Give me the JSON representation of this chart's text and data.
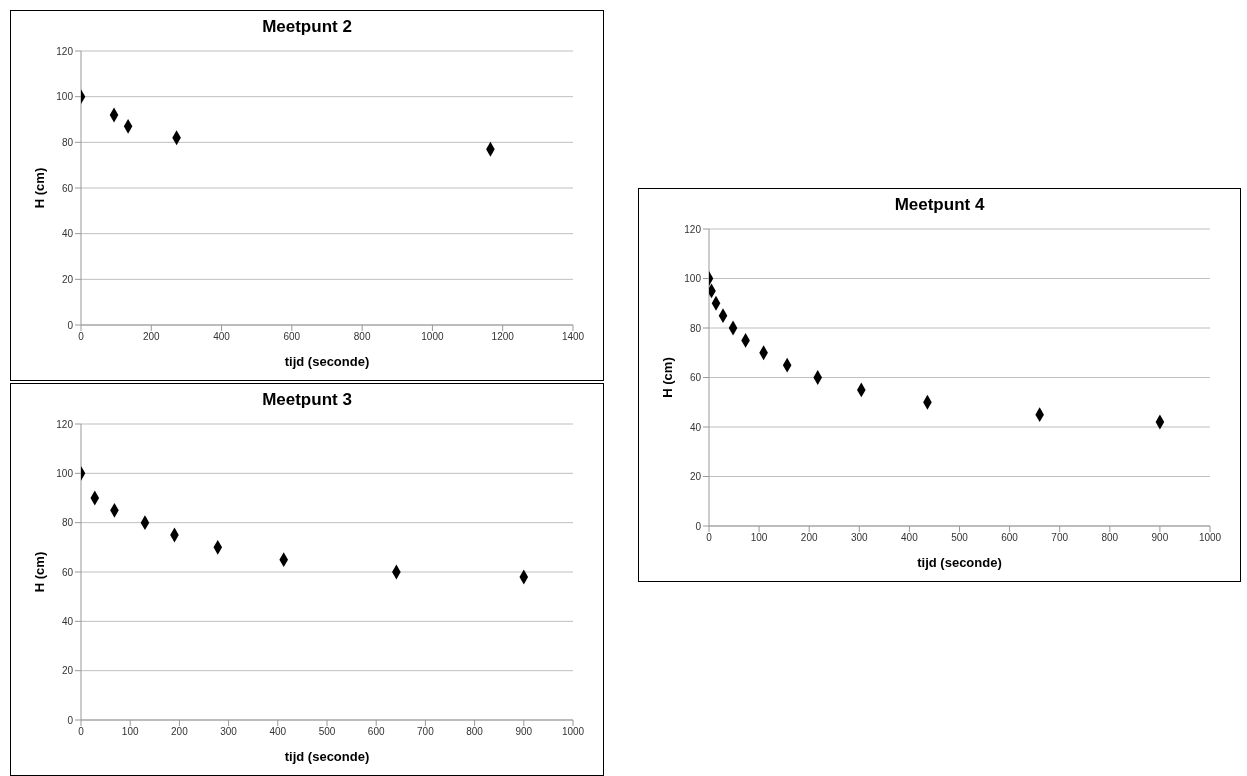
{
  "chart_data": [
    {
      "type": "scatter",
      "title": "Meetpunt 2",
      "xlabel": "tijd (seconde)",
      "ylabel": "H (cm)",
      "x": [
        0,
        94,
        134,
        272,
        1165
      ],
      "values": [
        100,
        92,
        87,
        82,
        77
      ],
      "color": "#000000",
      "xlim": [
        0,
        1400
      ],
      "xticks": [
        0,
        200,
        400,
        600,
        800,
        1000,
        1200,
        1400
      ],
      "ylim": [
        0,
        120
      ],
      "yticks": [
        0,
        20,
        40,
        60,
        80,
        100,
        120
      ],
      "grid": "y",
      "marker": "diamond"
    },
    {
      "type": "scatter",
      "title": "Meetpunt 3",
      "xlabel": "tijd (seconde)",
      "ylabel": "H (cm)",
      "x": [
        0,
        28,
        68,
        130,
        190,
        278,
        412,
        641,
        900
      ],
      "values": [
        100,
        90,
        85,
        80,
        75,
        70,
        65,
        60,
        58
      ],
      "color": "#000000",
      "xlim": [
        0,
        1000
      ],
      "xticks": [
        0,
        100,
        200,
        300,
        400,
        500,
        600,
        700,
        800,
        900,
        1000
      ],
      "ylim": [
        0,
        120
      ],
      "yticks": [
        0,
        20,
        40,
        60,
        80,
        100,
        120
      ],
      "grid": "y",
      "marker": "diamond"
    },
    {
      "type": "scatter",
      "title": "Meetpunt 4",
      "xlabel": "tijd (seconde)",
      "ylabel": "H (cm)",
      "x": [
        0,
        5,
        14,
        28,
        48,
        73,
        109,
        156,
        217,
        304,
        436,
        660,
        900
      ],
      "values": [
        100,
        95,
        90,
        85,
        80,
        75,
        70,
        65,
        60,
        55,
        50,
        45,
        42
      ],
      "color": "#000000",
      "xlim": [
        0,
        1000
      ],
      "xticks": [
        0,
        100,
        200,
        300,
        400,
        500,
        600,
        700,
        800,
        900,
        1000
      ],
      "ylim": [
        0,
        120
      ],
      "yticks": [
        0,
        20,
        40,
        60,
        80,
        100,
        120
      ],
      "grid": "y",
      "marker": "diamond"
    }
  ]
}
